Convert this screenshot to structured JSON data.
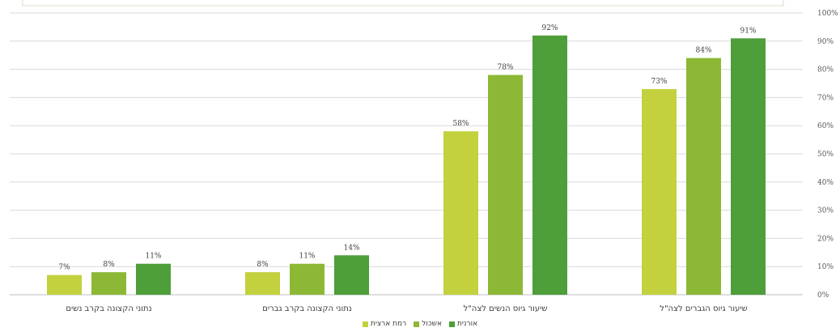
{
  "chart_data": {
    "type": "bar",
    "categories": [
      "שיעור גיוס הגברים לצה\"ל",
      "שיעור גיוס הנשים לצה\"ל",
      "נתוני הקצונה בקרב גברים",
      "נתוני הקצונה בקרב נשים"
    ],
    "series": [
      {
        "name": "רמת ארצית",
        "color": "#c3d13e",
        "values": [
          73,
          58,
          8,
          7
        ],
        "labels": [
          "73%",
          "58%",
          "8%",
          "7%"
        ]
      },
      {
        "name": "אשכול",
        "color": "#8db836",
        "values": [
          84,
          78,
          11,
          8
        ],
        "labels": [
          "84%",
          "78%",
          "11%",
          "8%"
        ]
      },
      {
        "name": "אורנית",
        "color": "#4e9e3a",
        "values": [
          91,
          92,
          14,
          11
        ],
        "labels": [
          "91%",
          "92%",
          "14%",
          "11%"
        ]
      }
    ],
    "ylim": [
      0,
      100
    ],
    "y_ticks": [
      "0%",
      "10%",
      "20%",
      "30%",
      "40%",
      "50%",
      "60%",
      "70%",
      "80%",
      "90%",
      "100%"
    ],
    "axis_side": "right",
    "category_order": "right-to-left",
    "grid": true,
    "legend_position": "bottom"
  }
}
